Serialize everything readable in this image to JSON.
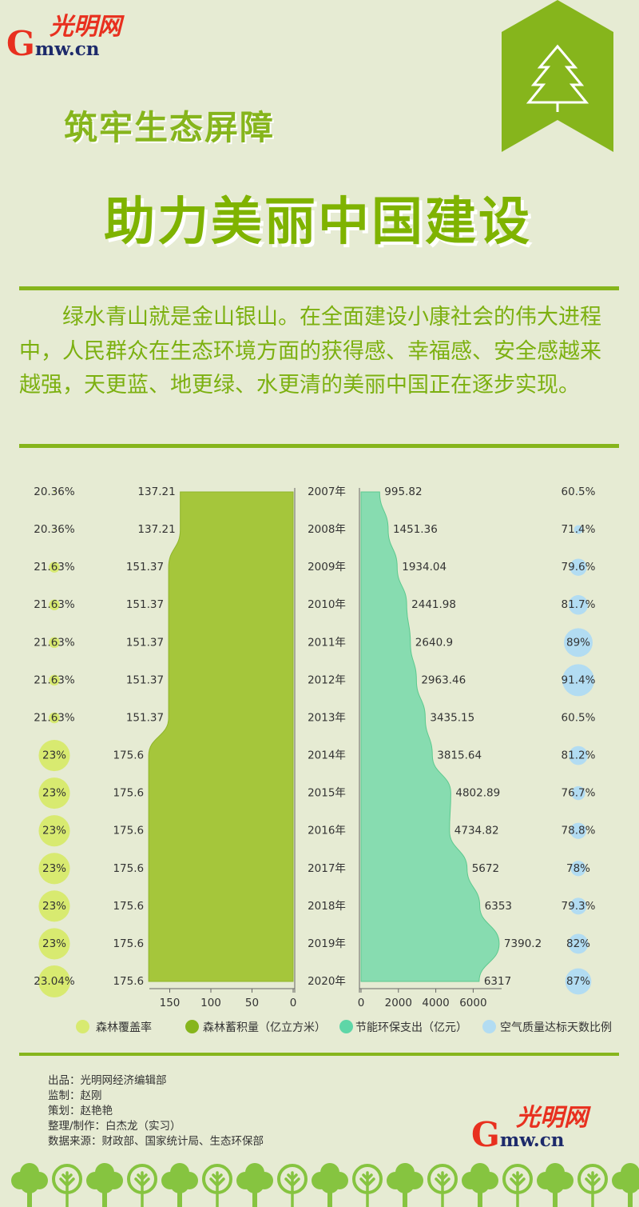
{
  "brand": {
    "logo_cn": "光明网",
    "logo_g": "G",
    "logo_domain": "mw.cn"
  },
  "header": {
    "title_line1": "筑牢生态屏障",
    "title_line2": "助力美丽中国建设"
  },
  "intro": {
    "paragraph": "绿水青山就是金山银山。在全面建设小康社会的伟大进程中，人民群众在生态环境方面的获得感、幸福感、安全感越来越强，天更蓝、地更绿、水更清的美丽中国正在逐步实现。"
  },
  "chart_data": {
    "type": "area",
    "categories": [
      "2007年",
      "2008年",
      "2009年",
      "2010年",
      "2011年",
      "2012年",
      "2013年",
      "2014年",
      "2015年",
      "2016年",
      "2017年",
      "2018年",
      "2019年",
      "2020年"
    ],
    "series": [
      {
        "name": "森林覆盖率",
        "chart": "bubble",
        "labels": [
          "20.36%",
          "20.36%",
          "21.63%",
          "21.63%",
          "21.63%",
          "21.63%",
          "21.63%",
          "23%",
          "23%",
          "23%",
          "23%",
          "23%",
          "23%",
          "23.04%"
        ],
        "values": [
          20.36,
          20.36,
          21.63,
          21.63,
          21.63,
          21.63,
          21.63,
          23,
          23,
          23,
          23,
          23,
          23,
          23.04
        ],
        "color": "#d8ea70"
      },
      {
        "name": "森林蓄积量（亿立方米）",
        "chart": "area-mirrored",
        "labels": [
          "137.21",
          "137.21",
          "151.37",
          "151.37",
          "151.37",
          "151.37",
          "151.37",
          "175.6",
          "175.6",
          "175.6",
          "175.6",
          "175.6",
          "175.6",
          "175.6"
        ],
        "values": [
          137.21,
          137.21,
          151.37,
          151.37,
          151.37,
          151.37,
          151.37,
          175.6,
          175.6,
          175.6,
          175.6,
          175.6,
          175.6,
          175.6
        ],
        "xlim": [
          0,
          180
        ],
        "ticks": [
          "150",
          "100",
          "50",
          "0"
        ],
        "color": "#a5c63b"
      },
      {
        "name": "节能环保支出（亿元）",
        "chart": "area",
        "labels": [
          "995.82",
          "1451.36",
          "1934.04",
          "2441.98",
          "2640.9",
          "2963.46",
          "3435.15",
          "3815.64",
          "4802.89",
          "4734.82",
          "5672",
          "6353",
          "7390.2",
          "6317"
        ],
        "values": [
          995.82,
          1451.36,
          1934.04,
          2441.98,
          2640.9,
          2963.46,
          3435.15,
          3815.64,
          4802.89,
          4734.82,
          5672,
          6353,
          7390.2,
          6317
        ],
        "xlim": [
          0,
          8000
        ],
        "ticks": [
          "0",
          "2000",
          "4000",
          "6000"
        ],
        "color": "#87dcb0"
      },
      {
        "name": "空气质量达标天数比例",
        "chart": "bubble",
        "labels": [
          "60.5%",
          "71.4%",
          "79.6%",
          "81.7%",
          "89%",
          "91.4%",
          "60.5%",
          "81.2%",
          "76.7%",
          "78.8%",
          "78%",
          "79.3%",
          "82%",
          "87%"
        ],
        "values": [
          60.5,
          71.4,
          79.6,
          81.7,
          89,
          91.4,
          60.5,
          81.2,
          76.7,
          78.8,
          78,
          79.3,
          82,
          87
        ],
        "color": "#b2dcf2"
      }
    ],
    "legend": [
      "森林覆盖率",
      "森林蓄积量（亿立方米）",
      "节能环保支出（亿元）",
      "空气质量达标天数比例"
    ],
    "legend_colors": [
      "#d8ea70",
      "#86b51c",
      "#5ed6a7",
      "#b2dcf2"
    ],
    "legend_position": "bottom"
  },
  "credits": {
    "lines": [
      "出品：光明网经济编辑部",
      "监制：赵刚",
      "策划：赵艳艳",
      "整理/制作：白杰龙（实习）",
      "数据来源：财政部、国家统计局、生态环保部"
    ]
  },
  "colors": {
    "background": "#e6ebd3",
    "accent_green": "#86b51c",
    "tree_green": "#86c440",
    "logo_red": "#e8301f",
    "logo_blue": "#1d2a6b"
  }
}
